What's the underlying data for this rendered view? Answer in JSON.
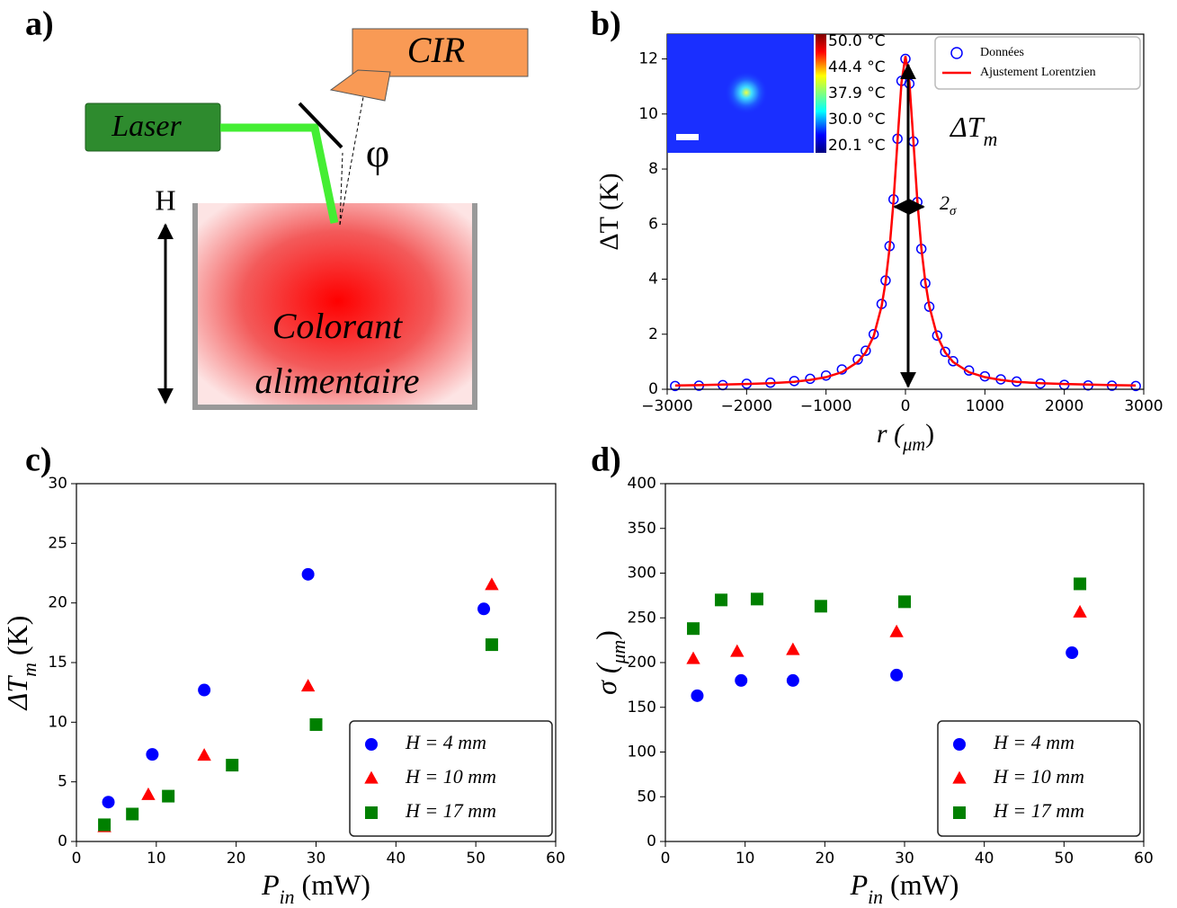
{
  "diagram": {
    "label": "a)",
    "detector": "CIR",
    "laser": "Laser",
    "angle": "φ",
    "height": "H",
    "liquid": [
      "Colorant",
      "alimentaire"
    ]
  },
  "chart_data": [
    {
      "type": "line",
      "label": "b)",
      "xlabel": [
        "r (",
        "μm",
        ")"
      ],
      "ylabel": "ΔT (K)",
      "xlim": [
        -3000,
        3000
      ],
      "ylim": [
        0,
        12.9
      ],
      "xticks": [
        {
          "value": -3000,
          "label": "−3000"
        },
        {
          "value": -2000,
          "label": "−2000"
        },
        {
          "value": -1000,
          "label": "−1000"
        },
        0,
        1000,
        2000,
        3000
      ],
      "yticks": [
        0,
        2,
        4,
        6,
        8,
        10,
        12
      ],
      "legend": "upper right",
      "colorbar_labels": [
        "50.0 °C",
        "44.4 °C",
        "37.9 °C",
        "30.0 °C",
        "20.1 °C"
      ],
      "annotations": [
        [
          "ΔT",
          "m"
        ],
        [
          "2",
          "σ"
        ]
      ],
      "series": [
        {
          "name": "Données",
          "color": "#0000ff",
          "mode": "markers",
          "marker": "open-circle",
          "x": [
            -2900,
            -2600,
            -2300,
            -2000,
            -1700,
            -1400,
            -1200,
            -1000,
            -800,
            -600,
            -500,
            -400,
            -300,
            -250,
            -200,
            -150,
            -100,
            -50,
            0,
            50,
            100,
            150,
            200,
            250,
            300,
            400,
            500,
            600,
            800,
            1000,
            1200,
            1400,
            1700,
            2000,
            2300,
            2600,
            2900
          ],
          "values": [
            0.12,
            0.13,
            0.15,
            0.2,
            0.24,
            0.3,
            0.38,
            0.5,
            0.72,
            1.08,
            1.4,
            2.0,
            3.1,
            3.95,
            5.2,
            6.9,
            9.1,
            11.2,
            12.0,
            11.1,
            9.0,
            6.8,
            5.1,
            3.85,
            3.0,
            1.95,
            1.36,
            1.02,
            0.68,
            0.47,
            0.36,
            0.28,
            0.21,
            0.16,
            0.14,
            0.13,
            0.12
          ]
        },
        {
          "name": "Ajustement Lorentzien",
          "color": "#ff0000",
          "mode": "line",
          "x": [
            -2900,
            -2600,
            -2300,
            -2000,
            -1700,
            -1400,
            -1200,
            -1000,
            -800,
            -600,
            -500,
            -400,
            -300,
            -250,
            -200,
            -150,
            -100,
            -50,
            0,
            50,
            100,
            150,
            200,
            250,
            300,
            400,
            500,
            600,
            800,
            1000,
            1200,
            1400,
            1700,
            2000,
            2300,
            2600,
            2900
          ],
          "values": [
            0.14,
            0.15,
            0.17,
            0.19,
            0.22,
            0.27,
            0.34,
            0.44,
            0.62,
            0.99,
            1.34,
            1.93,
            3.02,
            3.9,
            5.13,
            6.84,
            9.02,
            11.14,
            12.1,
            11.14,
            9.02,
            6.84,
            5.13,
            3.9,
            3.02,
            1.93,
            1.34,
            0.99,
            0.62,
            0.44,
            0.34,
            0.27,
            0.22,
            0.19,
            0.17,
            0.15,
            0.14
          ]
        }
      ]
    },
    {
      "type": "scatter",
      "label": "c)",
      "xlabel": [
        "P",
        "in",
        " (mW)"
      ],
      "ylabel": [
        "ΔT",
        "m",
        " (K)"
      ],
      "xlim": [
        0,
        60
      ],
      "ylim": [
        0,
        30
      ],
      "xticks": [
        0,
        10,
        20,
        30,
        40,
        50,
        60
      ],
      "yticks": [
        0,
        5,
        10,
        15,
        20,
        25,
        30
      ],
      "legend": "lower right",
      "series": [
        {
          "name": "H = 4 mm",
          "color": "#0000ff",
          "marker": "circle",
          "x": [
            4,
            9.5,
            16,
            29,
            51
          ],
          "values": [
            3.3,
            7.3,
            12.7,
            22.4,
            19.5
          ]
        },
        {
          "name": "H = 10 mm",
          "color": "#ff0000",
          "marker": "triangle",
          "x": [
            3.5,
            9,
            16,
            29,
            52
          ],
          "values": [
            1.2,
            3.9,
            7.2,
            13,
            21.5
          ]
        },
        {
          "name": "H = 17 mm",
          "color": "#008000",
          "marker": "square",
          "x": [
            3.5,
            7,
            11.5,
            19.5,
            30,
            52
          ],
          "values": [
            1.4,
            2.3,
            3.8,
            6.4,
            9.8,
            16.5
          ]
        }
      ]
    },
    {
      "type": "scatter",
      "label": "d)",
      "xlabel": [
        "P",
        "in",
        " (mW)"
      ],
      "ylabel": [
        "σ (",
        "μm",
        ")"
      ],
      "xlim": [
        0,
        60
      ],
      "ylim": [
        0,
        400
      ],
      "xticks": [
        0,
        10,
        20,
        30,
        40,
        50,
        60
      ],
      "yticks": [
        0,
        50,
        100,
        150,
        200,
        250,
        300,
        350,
        400
      ],
      "legend": "lower right",
      "series": [
        {
          "name": "H = 4 mm",
          "color": "#0000ff",
          "marker": "circle",
          "x": [
            4,
            9.5,
            16,
            29,
            51
          ],
          "values": [
            163,
            180,
            180,
            186,
            211
          ]
        },
        {
          "name": "H = 10 mm",
          "color": "#ff0000",
          "marker": "triangle",
          "x": [
            3.5,
            9,
            16,
            29,
            52
          ],
          "values": [
            204,
            212,
            214,
            234,
            256
          ]
        },
        {
          "name": "H = 17 mm",
          "color": "#008000",
          "marker": "square",
          "x": [
            3.5,
            7,
            11.5,
            19.5,
            30,
            52
          ],
          "values": [
            238,
            270,
            271,
            263,
            268,
            288
          ]
        }
      ]
    }
  ]
}
